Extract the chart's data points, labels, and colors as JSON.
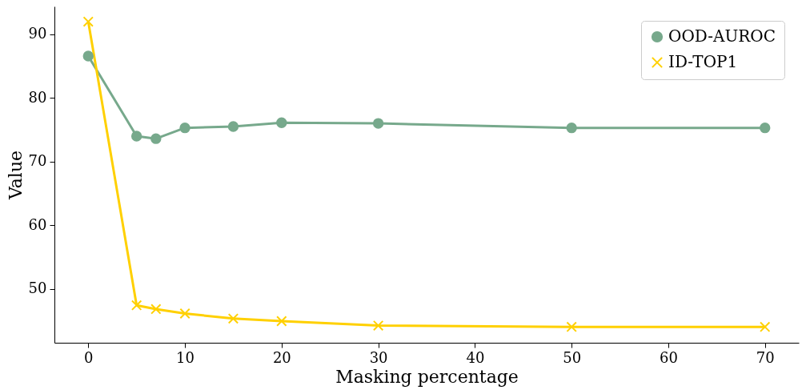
{
  "chart_data": {
    "type": "line",
    "xlabel": "Masking percentage",
    "ylabel": "Value",
    "x": [
      0,
      5,
      7,
      10,
      15,
      20,
      30,
      50,
      70
    ],
    "series": [
      {
        "name": "OOD-AUROC",
        "color": "#77a98c",
        "marker": "circle",
        "values": [
          86.6,
          74.0,
          73.6,
          75.3,
          75.5,
          76.1,
          76.0,
          75.3,
          75.3
        ]
      },
      {
        "name": "ID-TOP1",
        "color": "#ffd000",
        "marker": "cross",
        "values": [
          92.0,
          47.4,
          46.8,
          46.1,
          45.3,
          44.9,
          44.2,
          44.0,
          44.0
        ]
      }
    ],
    "xlim": [
      -3.5,
      73.5
    ],
    "xticks": [
      0,
      10,
      20,
      30,
      40,
      50,
      60,
      70
    ],
    "ylim": [
      41.5,
      94.4
    ],
    "yticks": [
      50,
      60,
      70,
      80,
      90
    ],
    "grid": false,
    "legend": "top right",
    "line_style": "solid"
  }
}
